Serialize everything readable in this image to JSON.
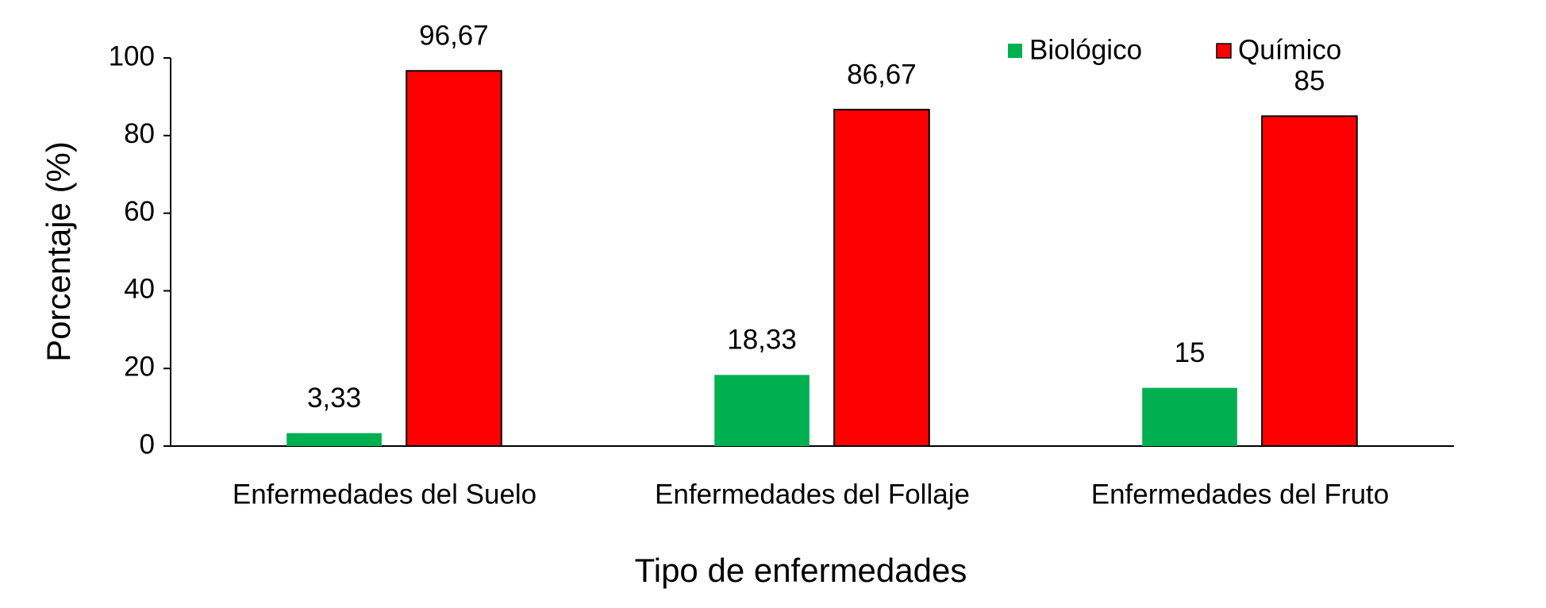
{
  "chart_data": {
    "type": "bar",
    "categories": [
      "Enfermedades del Suelo",
      "Enfermedades del Follaje",
      "Enfermedades del Fruto"
    ],
    "series": [
      {
        "name": "Biológico",
        "color": "#00b050",
        "values": [
          3.33,
          18.33,
          15
        ],
        "value_labels": [
          "3,33",
          "18,33",
          "15"
        ]
      },
      {
        "name": "Químico",
        "color": "#ff0000",
        "values": [
          96.67,
          86.67,
          85
        ],
        "value_labels": [
          "96,67",
          "86,67",
          "85"
        ]
      }
    ],
    "x_label": "Tipo de enfermedades",
    "y_label": "Porcentaje (%)",
    "ylim": [
      0,
      100
    ],
    "yticks": [
      0,
      20,
      40,
      60,
      80,
      100
    ],
    "grid": false,
    "legend": "top-right"
  }
}
